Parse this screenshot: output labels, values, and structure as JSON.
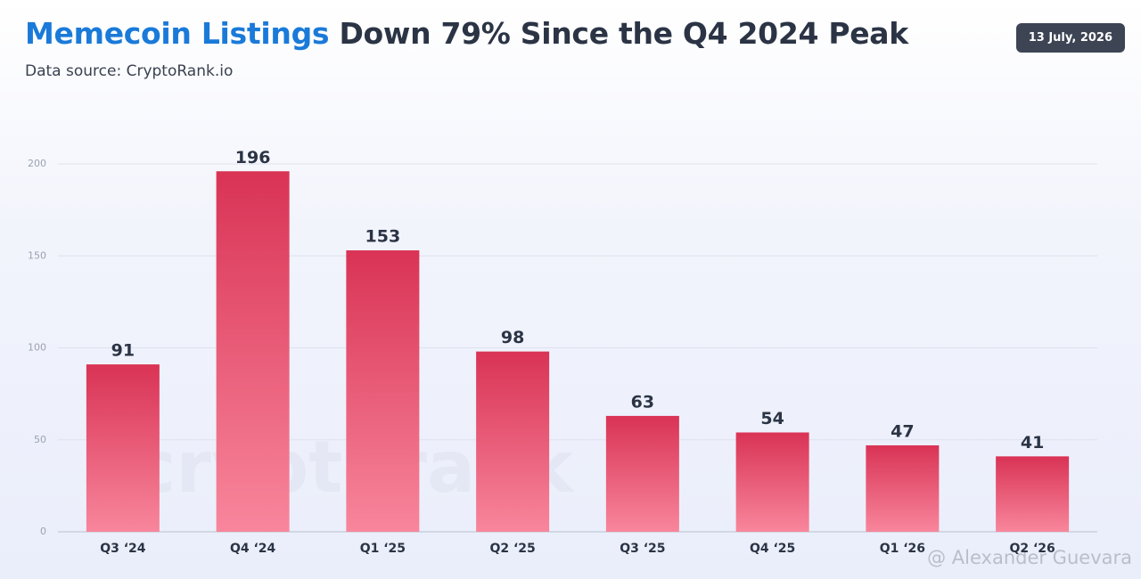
{
  "header": {
    "title_highlight": "Memecoin Listings",
    "title": "Down 79% Since the Q4 2024 Peak",
    "source": "Data source: CryptoRank.io",
    "date": "13 July, 2026"
  },
  "watermark": "cryptorank",
  "credit": "@ Alexander Guevara",
  "chart_data": {
    "type": "bar",
    "categories": [
      "Q3 ‘24",
      "Q4 ‘24",
      "Q1 ‘25",
      "Q2 ‘25",
      "Q3 ‘25",
      "Q4 ‘25",
      "Q1 ‘26",
      "Q2 ‘26"
    ],
    "values": [
      91,
      196,
      153,
      98,
      63,
      54,
      47,
      41
    ],
    "color": "#d93355",
    "ylim": [
      0,
      200
    ],
    "yticks": [
      0,
      50,
      100,
      150,
      200
    ],
    "grid": true
  }
}
